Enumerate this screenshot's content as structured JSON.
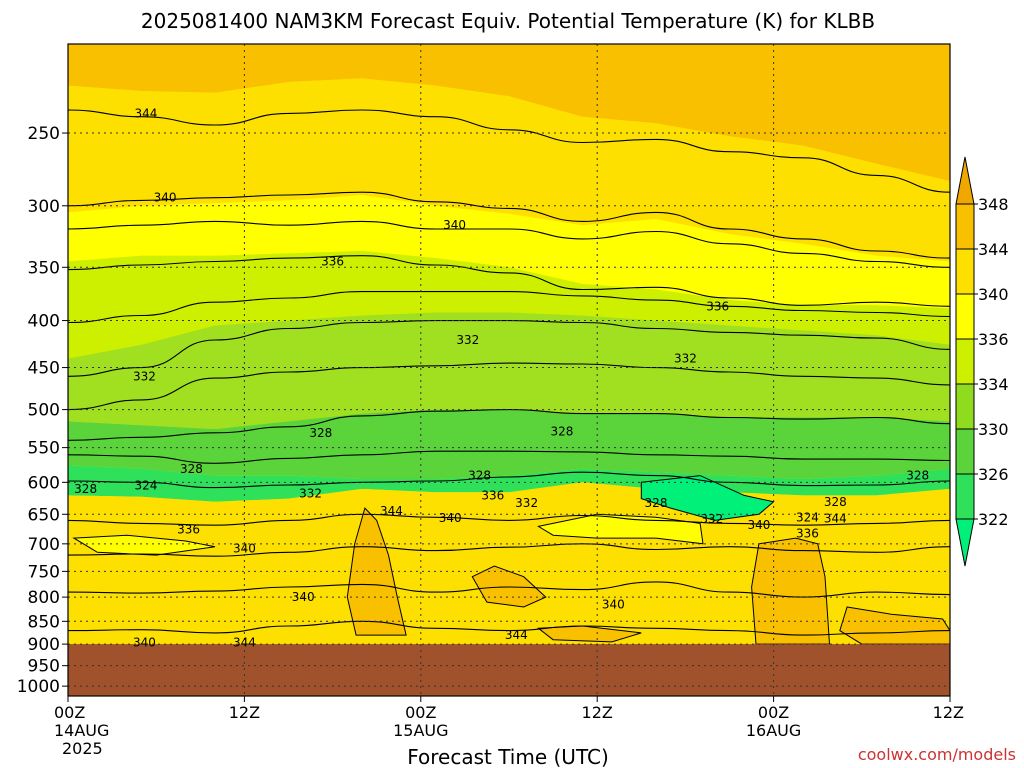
{
  "chart_data": {
    "type": "heatmap",
    "title": "2025081400 NAM3KM Forecast Equiv. Potential Temperature (K) for KLBB",
    "xlabel": "Forecast Time (UTC)",
    "ylabel": "",
    "watermark": "coolwx.com/models",
    "x_ticks": [
      {
        "hours": 0,
        "label": "00Z",
        "sub1": "14AUG",
        "sub2": "2025"
      },
      {
        "hours": 12,
        "label": "12Z",
        "sub1": "",
        "sub2": ""
      },
      {
        "hours": 24,
        "label": "00Z",
        "sub1": "15AUG",
        "sub2": ""
      },
      {
        "hours": 36,
        "label": "12Z",
        "sub1": "",
        "sub2": ""
      },
      {
        "hours": 48,
        "label": "00Z",
        "sub1": "16AUG",
        "sub2": ""
      },
      {
        "hours": 60,
        "label": "12Z",
        "sub1": "",
        "sub2": ""
      }
    ],
    "xlim_hours": [
      0,
      60
    ],
    "y_pressure_ticks": [
      250,
      300,
      350,
      400,
      450,
      500,
      550,
      600,
      650,
      700,
      750,
      800,
      850,
      900,
      950,
      1000
    ],
    "ylim_pressure": [
      200,
      1025
    ],
    "ground_pressure": 900,
    "grid": true,
    "colorbar": {
      "levels": [
        322,
        326,
        330,
        334,
        336,
        340,
        344,
        348
      ],
      "colors": [
        "#00f07a",
        "#2ee05a",
        "#5ad43a",
        "#8fdc1e",
        "#cdf000",
        "#ffff00",
        "#fde000",
        "#f9c000",
        "#f0a800"
      ],
      "extend": "both",
      "placement": "right"
    },
    "ground_color": "#a0522d",
    "bands": [
      {
        "label": "344-348",
        "color": "#f9c000",
        "p_top": [
          200,
          200,
          200,
          200,
          200,
          200,
          200,
          200,
          200,
          200,
          200,
          200,
          200
        ],
        "p_bot": [
          222,
          225,
          226,
          220,
          218,
          222,
          228,
          240,
          244,
          252,
          258,
          270,
          282
        ]
      },
      {
        "label": "340-344",
        "color": "#fde000",
        "p_top": [
          222,
          225,
          226,
          220,
          218,
          222,
          228,
          240,
          244,
          252,
          258,
          270,
          282
        ],
        "p_bot": [
          305,
          300,
          298,
          296,
          292,
          300,
          306,
          315,
          310,
          322,
          330,
          340,
          345
        ]
      },
      {
        "label": "336-340",
        "color": "#ffff00",
        "p_top": [
          305,
          300,
          298,
          296,
          292,
          300,
          306,
          315,
          310,
          322,
          330,
          340,
          345
        ],
        "p_bot": [
          345,
          340,
          340,
          338,
          336,
          342,
          350,
          365,
          370,
          380,
          385,
          385,
          388
        ]
      },
      {
        "label": "334-336",
        "color": "#cdf000",
        "p_top": [
          345,
          340,
          340,
          338,
          336,
          342,
          350,
          365,
          370,
          380,
          385,
          385,
          388
        ],
        "p_bot": [
          440,
          425,
          405,
          400,
          395,
          392,
          392,
          395,
          400,
          405,
          410,
          415,
          425
        ]
      },
      {
        "label": "330-334",
        "color": "#a0e020",
        "p_top": [
          440,
          425,
          405,
          400,
          395,
          392,
          392,
          395,
          400,
          405,
          410,
          415,
          425
        ],
        "p_bot": [
          515,
          520,
          525,
          515,
          505,
          500,
          500,
          505,
          505,
          510,
          510,
          510,
          515
        ]
      },
      {
        "label": "326-330",
        "color": "#5ad43a",
        "p_top": [
          515,
          520,
          525,
          515,
          505,
          500,
          500,
          505,
          505,
          510,
          510,
          510,
          515
        ],
        "p_bot": [
          575,
          580,
          590,
          590,
          595,
          595,
          590,
          580,
          585,
          590,
          595,
          590,
          580
        ]
      },
      {
        "label": "322-326",
        "color": "#2ee05a",
        "p_top": [
          575,
          580,
          590,
          590,
          595,
          595,
          590,
          580,
          585,
          590,
          595,
          590,
          580
        ],
        "p_bot": [
          620,
          622,
          630,
          625,
          610,
          615,
          615,
          600,
          610,
          615,
          620,
          620,
          610
        ]
      },
      {
        "label": "336-344 low",
        "color": "#fde000",
        "p_top": [
          620,
          622,
          630,
          625,
          610,
          615,
          615,
          600,
          610,
          615,
          620,
          620,
          610
        ],
        "p_bot": [
          900,
          900,
          900,
          900,
          900,
          900,
          900,
          900,
          900,
          900,
          900,
          900,
          900
        ]
      }
    ],
    "patches": [
      {
        "label": "344-348",
        "color": "#f9c000",
        "points": [
          [
            20.2,
            640
          ],
          [
            21.0,
            660
          ],
          [
            21.8,
            720
          ],
          [
            22.4,
            800
          ],
          [
            23.0,
            880
          ],
          [
            19.6,
            880
          ],
          [
            19.0,
            800
          ],
          [
            19.5,
            700
          ]
        ]
      },
      {
        "label": "344-348",
        "color": "#f9c000",
        "points": [
          [
            27.5,
            760
          ],
          [
            29.0,
            740
          ],
          [
            31.0,
            760
          ],
          [
            32.5,
            800
          ],
          [
            31.0,
            820
          ],
          [
            28.5,
            810
          ]
        ]
      },
      {
        "label": "344-348",
        "color": "#f9c000",
        "points": [
          [
            47.0,
            700
          ],
          [
            49.5,
            690
          ],
          [
            51.0,
            700
          ],
          [
            51.5,
            760
          ],
          [
            51.8,
            900
          ],
          [
            46.8,
            900
          ],
          [
            46.5,
            780
          ]
        ]
      },
      {
        "label": "336-340",
        "color": "#ffff00",
        "points": [
          [
            32.0,
            670
          ],
          [
            36.0,
            650
          ],
          [
            40.0,
            655
          ],
          [
            43.0,
            665
          ],
          [
            43.2,
            700
          ],
          [
            40.0,
            690
          ],
          [
            36.0,
            690
          ],
          [
            33.0,
            685
          ]
        ]
      },
      {
        "label": "322-326",
        "color": "#00f07a",
        "points": [
          [
            39.0,
            600
          ],
          [
            43.0,
            590
          ],
          [
            46.0,
            620
          ],
          [
            48.0,
            630
          ],
          [
            47.0,
            650
          ],
          [
            44.0,
            660
          ],
          [
            41.0,
            640
          ],
          [
            39.0,
            625
          ]
        ]
      },
      {
        "label": "336-340",
        "color": "#ffff00",
        "points": [
          [
            0.4,
            690
          ],
          [
            4.0,
            685
          ],
          [
            8.0,
            695
          ],
          [
            10.0,
            705
          ],
          [
            6.0,
            720
          ],
          [
            2.0,
            715
          ]
        ]
      },
      {
        "label": "344-348",
        "color": "#f9c000",
        "points": [
          [
            53.0,
            820
          ],
          [
            56.0,
            835
          ],
          [
            59.5,
            845
          ],
          [
            60.0,
            870
          ],
          [
            60.0,
            900
          ],
          [
            54.0,
            900
          ],
          [
            52.5,
            870
          ]
        ]
      },
      {
        "label": "344-348",
        "color": "#f9c000",
        "points": [
          [
            32.0,
            865
          ],
          [
            35.0,
            860
          ],
          [
            39.0,
            875
          ],
          [
            37.0,
            895
          ],
          [
            33.0,
            890
          ]
        ]
      }
    ],
    "contours": [
      {
        "label": "344",
        "p": [
          236,
          240,
          245,
          238,
          236,
          240,
          248,
          256,
          254,
          262,
          266,
          278,
          290
        ]
      },
      {
        "label": "340",
        "p": [
          300,
          296,
          294,
          292,
          290,
          297,
          302,
          312,
          305,
          318,
          326,
          336,
          342
        ]
      },
      {
        "label": "340",
        "p": [
          318,
          315,
          312,
          315,
          312,
          318,
          318,
          326,
          320,
          330,
          338,
          345,
          350
        ]
      },
      {
        "label": "336",
        "p": [
          352,
          348,
          345,
          342,
          340,
          348,
          355,
          370,
          368,
          378,
          385,
          382,
          386
        ]
      },
      {
        "label": "336",
        "p": [
          402,
          395,
          382,
          378,
          372,
          372,
          372,
          376,
          380,
          386,
          390,
          392,
          396
        ]
      },
      {
        "label": "332",
        "p": [
          460,
          450,
          420,
          408,
          402,
          400,
          400,
          402,
          408,
          412,
          415,
          418,
          430
        ]
      },
      {
        "label": "332",
        "p": [
          500,
          488,
          462,
          455,
          450,
          448,
          445,
          446,
          450,
          455,
          460,
          462,
          470
        ]
      },
      {
        "label": "328",
        "p": [
          540,
          536,
          530,
          522,
          508,
          502,
          500,
          505,
          505,
          510,
          512,
          510,
          518
        ]
      },
      {
        "label": "328",
        "p": [
          560,
          562,
          572,
          565,
          560,
          555,
          555,
          556,
          560,
          562,
          566,
          566,
          568
        ]
      },
      {
        "label": "324",
        "p": [
          598,
          600,
          608,
          604,
          600,
          598,
          592,
          585,
          590,
          600,
          605,
          604,
          598
        ]
      },
      {
        "label": "336",
        "p": [
          660,
          665,
          668,
          660,
          650,
          655,
          660,
          652,
          660,
          665,
          668,
          665,
          660
        ]
      },
      {
        "label": "340",
        "p": [
          720,
          718,
          722,
          715,
          705,
          712,
          706,
          700,
          710,
          705,
          712,
          715,
          705
        ]
      },
      {
        "label": "340",
        "p": [
          790,
          792,
          788,
          780,
          775,
          790,
          780,
          785,
          770,
          790,
          800,
          790,
          795
        ]
      },
      {
        "label": "344",
        "p": [
          870,
          868,
          875,
          860,
          850,
          865,
          870,
          860,
          865,
          870,
          880,
          875,
          870
        ]
      }
    ],
    "contour_labels": [
      {
        "text": "344",
        "hours": 5.3,
        "p": 238
      },
      {
        "text": "340",
        "hours": 6.6,
        "p": 294
      },
      {
        "text": "340",
        "hours": 26.3,
        "p": 315
      },
      {
        "text": "336",
        "hours": 18.0,
        "p": 345
      },
      {
        "text": "336",
        "hours": 44.2,
        "p": 386
      },
      {
        "text": "332",
        "hours": 27.2,
        "p": 420
      },
      {
        "text": "332",
        "hours": 5.2,
        "p": 460
      },
      {
        "text": "332",
        "hours": 42.0,
        "p": 440
      },
      {
        "text": "328",
        "hours": 17.2,
        "p": 530
      },
      {
        "text": "328",
        "hours": 8.4,
        "p": 580
      },
      {
        "text": "328",
        "hours": 33.6,
        "p": 528
      },
      {
        "text": "328",
        "hours": 28.0,
        "p": 590
      },
      {
        "text": "328",
        "hours": 1.2,
        "p": 610
      },
      {
        "text": "324",
        "hours": 5.3,
        "p": 605
      },
      {
        "text": "328",
        "hours": 57.8,
        "p": 590
      },
      {
        "text": "332",
        "hours": 16.5,
        "p": 617
      },
      {
        "text": "336",
        "hours": 28.9,
        "p": 620
      },
      {
        "text": "332",
        "hours": 31.2,
        "p": 632
      },
      {
        "text": "328",
        "hours": 40.0,
        "p": 632
      },
      {
        "text": "344",
        "hours": 22.0,
        "p": 645
      },
      {
        "text": "340",
        "hours": 26.0,
        "p": 656
      },
      {
        "text": "332",
        "hours": 43.8,
        "p": 658
      },
      {
        "text": "340",
        "hours": 47.0,
        "p": 668
      },
      {
        "text": "324",
        "hours": 50.3,
        "p": 655
      },
      {
        "text": "328",
        "hours": 52.2,
        "p": 630
      },
      {
        "text": "344",
        "hours": 52.2,
        "p": 657
      },
      {
        "text": "336",
        "hours": 50.3,
        "p": 682
      },
      {
        "text": "336",
        "hours": 8.2,
        "p": 675
      },
      {
        "text": "340",
        "hours": 12.0,
        "p": 708
      },
      {
        "text": "340",
        "hours": 16.0,
        "p": 800
      },
      {
        "text": "340",
        "hours": 37.1,
        "p": 815
      },
      {
        "text": "344",
        "hours": 30.5,
        "p": 880
      },
      {
        "text": "340",
        "hours": 5.2,
        "p": 896
      },
      {
        "text": "344",
        "hours": 12.0,
        "p": 896
      }
    ]
  }
}
